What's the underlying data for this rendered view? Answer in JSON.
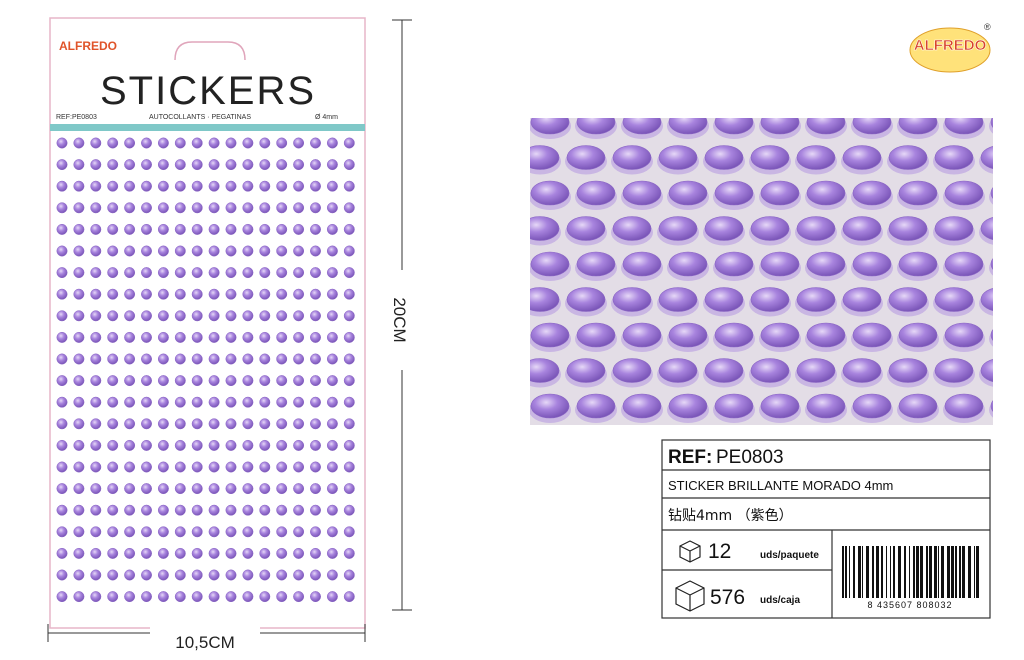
{
  "product_card": {
    "brand": "ALFREDO",
    "title": "STICKERS",
    "ref": "REF:PE0803",
    "subtitle": "AUTOCOLLANTS · PEGATINAS",
    "size": "Ø 4mm"
  },
  "dimensions": {
    "height": "20CM",
    "width": "10,5CM"
  },
  "logo": {
    "brand": "ALFREDO",
    "mark": "®"
  },
  "info_table": {
    "ref_label": "REF:",
    "ref_value": "PE0803",
    "name": "STICKER BRILLANTE MORADO 4mm",
    "name_cn": "钻贴4mm （紫色）",
    "pack_qty": "12",
    "pack_unit": "uds/paquete",
    "box_qty": "576",
    "box_unit": "uds/caja",
    "barcode": "8 435607 808032"
  }
}
